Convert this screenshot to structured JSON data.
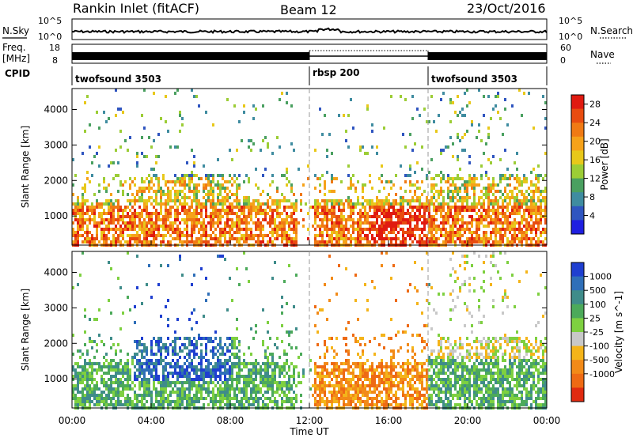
{
  "header": {
    "station": "Rankin Inlet (fitACF)",
    "beam": "Beam 12",
    "date": "23/Oct/2016"
  },
  "status_panels": {
    "nsky_label": "N.Sky",
    "nsearch_label": "N.Search",
    "freq_label_line1": "Freq.",
    "freq_label_line2": "[MHz]",
    "nave_label": "Nave",
    "cpid_label": "CPID",
    "noise_left_ticks": [
      "10^5",
      "10^0"
    ],
    "noise_right_ticks": [
      "10^5",
      "10^0"
    ],
    "freq_left_ticks": [
      "18",
      "8"
    ],
    "freq_right_ticks": [
      "60",
      "0"
    ],
    "cpid_segments": [
      {
        "start_h": 0,
        "end_h": 12,
        "label": "twofsound 3503"
      },
      {
        "start_h": 12,
        "end_h": 18,
        "label": "rbsp 200"
      },
      {
        "start_h": 18,
        "end_h": 24,
        "label": "twofsound 3503"
      }
    ]
  },
  "chart_data": [
    {
      "type": "heatmap",
      "title": "",
      "xlabel": "",
      "ylabel": "Slant Range [km]",
      "x_range_hours": [
        0,
        24
      ],
      "ylim": [
        180,
        4590
      ],
      "yticks": [
        1000,
        2000,
        3000,
        4000
      ],
      "colorbar": {
        "label": "Power [dB]",
        "ticks": [
          4,
          8,
          12,
          16,
          20,
          24,
          28
        ],
        "range": [
          0,
          30
        ],
        "colors": [
          "#1f1fe0",
          "#2f55c0",
          "#3f8ca0",
          "#4aa060",
          "#9ccd36",
          "#e8c81a",
          "#f6a21a",
          "#f07a14",
          "#e84c10",
          "#e01a10"
        ]
      }
    },
    {
      "type": "heatmap",
      "title": "",
      "xlabel": "Time UT",
      "ylabel": "Slant Range [km]",
      "x_range_hours": [
        0,
        24
      ],
      "ylim": [
        180,
        4590
      ],
      "yticks": [
        1000,
        2000,
        3000,
        4000
      ],
      "colorbar": {
        "label": "Velocity [m s^-1]",
        "ticks": [
          "1000",
          "500",
          "100",
          "25",
          "-25",
          "-100",
          "-500",
          "-1000"
        ],
        "colors": [
          "#1f3fd0",
          "#2f6fb8",
          "#3f8c8a",
          "#4caa5a",
          "#7ed040",
          "#c8c8c8",
          "#f4b41a",
          "#f28a18",
          "#ee6a14",
          "#e02a10"
        ]
      }
    }
  ],
  "time_axis": {
    "ticks": [
      "00:00",
      "04:00",
      "08:00",
      "12:00",
      "16:00",
      "20:00",
      "00:00"
    ],
    "label": "Time UT"
  }
}
